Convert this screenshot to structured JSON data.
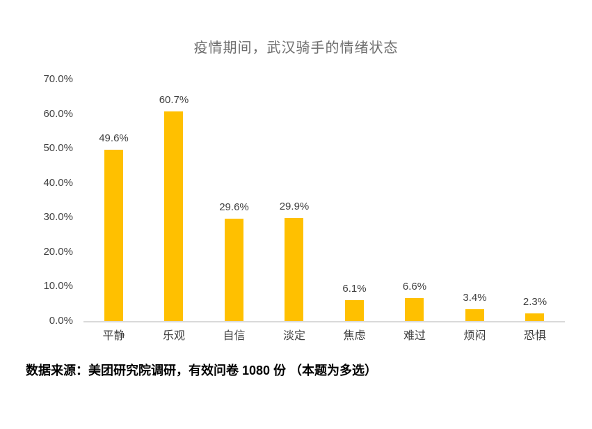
{
  "chart_data": {
    "type": "bar",
    "title": "疫情期间，武汉骑手的情绪状态",
    "categories": [
      "平静",
      "乐观",
      "自信",
      "淡定",
      "焦虑",
      "难过",
      "烦闷",
      "恐惧"
    ],
    "values": [
      49.6,
      60.7,
      29.6,
      29.9,
      6.1,
      6.6,
      3.4,
      2.3
    ],
    "value_labels": [
      "49.6%",
      "60.7%",
      "29.6%",
      "29.9%",
      "6.1%",
      "6.6%",
      "3.4%",
      "2.3%"
    ],
    "unit": "%",
    "xlabel": "",
    "ylabel": "",
    "ylim": [
      0,
      70
    ],
    "yticks": [
      "70.0%",
      "60.0%",
      "50.0%",
      "40.0%",
      "30.0%",
      "20.0%",
      "10.0%",
      "0.0%"
    ],
    "grid": false,
    "legend": "none",
    "colors": {
      "bar": "#FFC000",
      "axis_line": "#D9D9D9",
      "labels": "#404040",
      "title": "#6E6E6E"
    }
  },
  "footer": {
    "text": "数据来源：美团研究院调研，有效问卷 1080 份 （本题为多选）"
  }
}
